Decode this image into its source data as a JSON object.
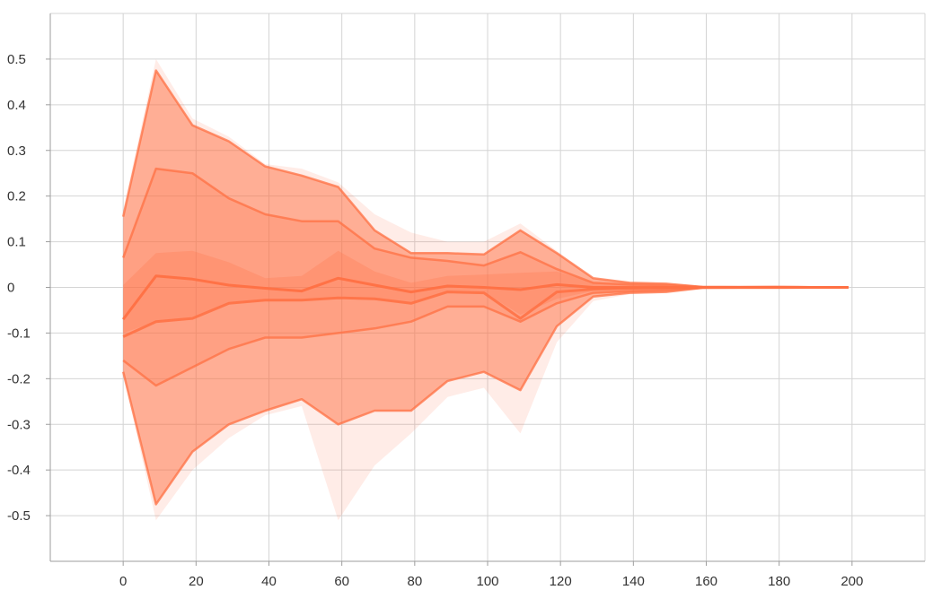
{
  "chart_data": {
    "type": "area",
    "title": "",
    "xlabel": "",
    "ylabel": "",
    "xlim": [
      -20,
      220
    ],
    "ylim": [
      -0.6,
      0.6
    ],
    "grid": true,
    "x_ticks": [
      "0",
      "20",
      "40",
      "60",
      "80",
      "100",
      "120",
      "140",
      "160",
      "180",
      "200"
    ],
    "y_ticks": [
      "-0.5",
      "-0.4",
      "-0.3",
      "-0.2",
      "-0.1",
      "0",
      "0.1",
      "0.2",
      "0.3",
      "0.4",
      "0.5"
    ],
    "color": "#ff7043",
    "x": [
      0,
      9,
      19,
      29,
      39,
      49,
      59,
      69,
      79,
      89,
      99,
      109,
      119,
      129,
      139,
      149,
      159,
      169,
      179,
      189,
      199
    ],
    "bands": [
      {
        "role": "extreme",
        "upper": [
          0.17,
          0.5,
          0.37,
          0.33,
          0.27,
          0.26,
          0.23,
          0.16,
          0.12,
          0.1,
          0.1,
          0.14,
          0.08,
          0.02,
          0.012,
          0.01,
          0.003,
          0.002,
          0.002,
          0.001,
          0.001
        ],
        "lower": [
          -0.19,
          -0.51,
          -0.4,
          -0.33,
          -0.28,
          -0.26,
          -0.51,
          -0.39,
          -0.32,
          -0.24,
          -0.22,
          -0.32,
          -0.12,
          -0.03,
          -0.015,
          -0.012,
          -0.003,
          -0.002,
          -0.002,
          -0.001,
          -0.001
        ]
      },
      {
        "role": "outer",
        "upper": [
          0.155,
          0.475,
          0.355,
          0.32,
          0.265,
          0.245,
          0.22,
          0.125,
          0.075,
          0.075,
          0.072,
          0.125,
          0.075,
          0.02,
          0.01,
          0.008,
          0.001,
          0.001,
          0.001,
          0.0005,
          0.0005
        ],
        "lower": [
          -0.185,
          -0.475,
          -0.36,
          -0.3,
          -0.27,
          -0.245,
          -0.3,
          -0.27,
          -0.27,
          -0.205,
          -0.185,
          -0.225,
          -0.085,
          -0.02,
          -0.012,
          -0.01,
          -0.001,
          -0.001,
          -0.001,
          -0.0005,
          -0.0005
        ]
      },
      {
        "role": "inner",
        "upper": [
          0.065,
          0.26,
          0.25,
          0.195,
          0.16,
          0.145,
          0.145,
          0.085,
          0.065,
          0.058,
          0.048,
          0.077,
          0.04,
          0.01,
          0.006,
          0.005,
          0.001,
          0.0005,
          0.0005,
          0.0005,
          0.0005
        ],
        "lower": [
          -0.16,
          -0.215,
          -0.175,
          -0.135,
          -0.11,
          -0.11,
          -0.1,
          -0.09,
          -0.075,
          -0.042,
          -0.042,
          -0.075,
          -0.035,
          -0.012,
          -0.008,
          -0.006,
          -0.001,
          -0.0005,
          -0.0005,
          -0.0005,
          -0.0005
        ]
      },
      {
        "role": "core",
        "upper": [
          0.005,
          0.075,
          0.08,
          0.055,
          0.02,
          0.025,
          0.08,
          0.035,
          0.01,
          0.025,
          0.028,
          0.032,
          0.035,
          0.01,
          0.004,
          0.003,
          0.001,
          0.0005,
          0.0005,
          0.0005,
          0.0005
        ],
        "lower": [
          -0.1,
          -0.075,
          -0.065,
          -0.035,
          -0.03,
          -0.03,
          -0.025,
          -0.028,
          -0.035,
          -0.01,
          -0.01,
          -0.06,
          -0.025,
          -0.008,
          -0.004,
          -0.003,
          -0.001,
          -0.0005,
          -0.0005,
          -0.0005,
          -0.0005
        ]
      }
    ],
    "median": [
      -0.07,
      0.025,
      0.018,
      0.005,
      -0.002,
      -0.008,
      0.02,
      0.005,
      -0.01,
      0.003,
      0.0,
      -0.005,
      0.006,
      0.0,
      0.0,
      0.0,
      0.0,
      0.0,
      0.0005,
      0.0,
      0.0
    ],
    "lower_median": [
      -0.108,
      -0.075,
      -0.068,
      -0.035,
      -0.028,
      -0.028,
      -0.023,
      -0.025,
      -0.035,
      -0.01,
      -0.012,
      -0.068,
      -0.01,
      -0.004,
      -0.002,
      -0.001,
      0.0,
      0.0,
      0.0,
      0.0,
      0.0
    ]
  }
}
